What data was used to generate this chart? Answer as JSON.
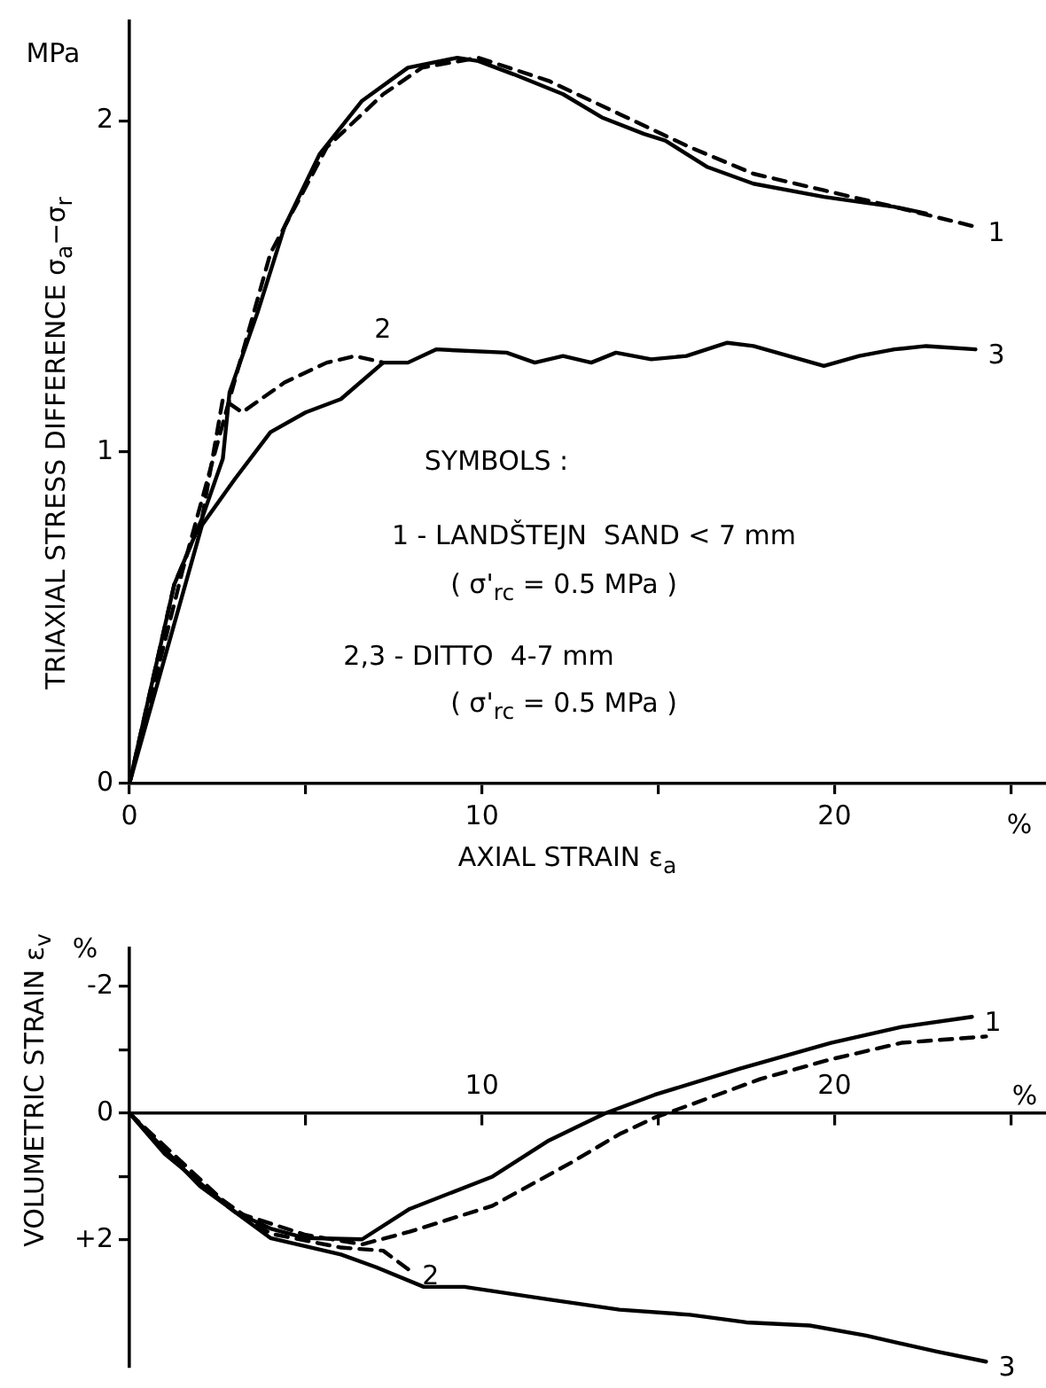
{
  "chart_data": [
    {
      "type": "line",
      "ylabel": "TRIAXIAL STRESS DIFFERENCE σ$_{a}$−σ$_{r}$",
      "xlabel": "AXIAL STRAIN ε$_{a}$",
      "annotations": [
        "MPa",
        "%",
        "SYMBOLS :",
        "1 - LANDŠTEJN  SAND < 7 mm",
        "( σ'$_{rc}$ = 0.5 MPa )",
        "2,3 - DITTO  4-7 mm",
        "( σ'$_{rc}$ = 0.5 MPa )"
      ],
      "xlim": [
        0,
        26
      ],
      "xticks": [
        0,
        {
          "value": 5,
          "label": null
        },
        10,
        {
          "value": 15,
          "label": null
        },
        20,
        {
          "value": 25,
          "label": null
        }
      ],
      "ylim": [
        0,
        2.3
      ],
      "yticks": [
        0,
        1,
        2
      ],
      "grid": false,
      "legend": false,
      "marker": "none",
      "series": [
        {
          "color": "#000000",
          "line_style": "solid",
          "x": [
            0,
            1.27,
            2.06,
            2.65,
            2.84,
            3.63,
            4.4,
            5.4,
            6.6,
            7.9,
            9.3,
            9.9,
            10.9,
            12.3,
            13.4,
            14.6,
            15.2,
            16.4,
            17.7,
            19.7,
            21.7,
            22.6
          ],
          "values": [
            0,
            0.6,
            0.8,
            0.98,
            1.18,
            1.42,
            1.68,
            1.9,
            2.06,
            2.16,
            2.19,
            2.18,
            2.14,
            2.08,
            2.01,
            1.96,
            1.94,
            1.86,
            1.81,
            1.77,
            1.74,
            1.72
          ]
        },
        {
          "name": "1",
          "color": "#000000",
          "line_style": "dashed",
          "x": [
            0,
            1.5,
            2.84,
            4.0,
            5.6,
            7.2,
            8.3,
            9.9,
            11.9,
            13.9,
            15.9,
            17.7,
            19.7,
            21.7,
            24.0
          ],
          "values": [
            0,
            0.64,
            1.16,
            1.6,
            1.92,
            2.08,
            2.16,
            2.19,
            2.12,
            2.02,
            1.92,
            1.84,
            1.79,
            1.74,
            1.68
          ]
        },
        {
          "name": "2",
          "color": "#000000",
          "line_style": "dashed",
          "x": [
            0,
            1.27,
            2.06,
            2.65,
            3.2,
            4.4,
            5.6,
            6.4,
            7.2
          ],
          "values": [
            0,
            0.6,
            0.8,
            1.16,
            1.12,
            1.21,
            1.27,
            1.29,
            1.27
          ]
        },
        {
          "name": "3",
          "color": "#000000",
          "line_style": "solid",
          "x": [
            0,
            2.06,
            3.0,
            4.0,
            5.0,
            6.0,
            7.2,
            7.9,
            8.7,
            10.7,
            11.5,
            12.3,
            13.1,
            13.8,
            14.8,
            15.8,
            16.96,
            17.7,
            18.7,
            19.7,
            20.7,
            21.7,
            22.6,
            24.0
          ],
          "values": [
            0,
            0.78,
            0.92,
            1.06,
            1.12,
            1.16,
            1.27,
            1.27,
            1.31,
            1.3,
            1.27,
            1.29,
            1.27,
            1.3,
            1.28,
            1.29,
            1.33,
            1.32,
            1.29,
            1.26,
            1.29,
            1.31,
            1.32,
            1.31
          ]
        }
      ]
    },
    {
      "type": "line",
      "ylabel": "VOLUMETRIC STRAIN ε$_{v}$",
      "annotations": [
        "%",
        "%"
      ],
      "xlim": [
        0,
        26
      ],
      "xticks": [
        {
          "value": 5,
          "label": null
        },
        10,
        {
          "value": 15,
          "label": null
        },
        20,
        {
          "value": 25,
          "label": null
        }
      ],
      "ylim": [
        4,
        -2.6
      ],
      "yticks": [
        {
          "value": -2,
          "label": "-2"
        },
        {
          "value": -1,
          "label": null
        },
        0,
        {
          "value": 1,
          "label": null
        },
        {
          "value": 2,
          "label": "+2"
        }
      ],
      "grid": false,
      "legend": false,
      "marker": "none",
      "series": [
        {
          "name": "1",
          "color": "#000000",
          "line_style": "solid",
          "x": [
            0,
            1.0,
            2.0,
            3.0,
            4.0,
            5.0,
            6.6,
            7.95,
            10.3,
            11.9,
            13.5,
            14.9,
            17.3,
            19.9,
            21.9,
            23.9
          ],
          "values": [
            0,
            0.64,
            1.1,
            1.56,
            1.82,
            1.97,
            1.99,
            1.51,
            1.0,
            0.43,
            0,
            -0.29,
            -0.7,
            -1.11,
            -1.36,
            -1.52
          ]
        },
        {
          "color": "#000000",
          "line_style": "dashed",
          "x": [
            0,
            3.0,
            5.0,
            6.6,
            7.95,
            10.3,
            12.5,
            13.9,
            14.9,
            15.9,
            17.9,
            19.9,
            21.9,
            24.3
          ],
          "values": [
            0,
            1.56,
            1.92,
            2.07,
            1.87,
            1.46,
            0.79,
            0.33,
            0.07,
            -0.13,
            -0.54,
            -0.85,
            -1.11,
            -1.21
          ]
        },
        {
          "name": "2",
          "color": "#000000",
          "line_style": "dashed",
          "x": [
            0,
            2.0,
            4.0,
            6.0,
            7.2,
            7.95
          ],
          "values": [
            0,
            1.12,
            1.9,
            2.12,
            2.17,
            2.48
          ]
        },
        {
          "name": "3",
          "color": "#000000",
          "line_style": "solid",
          "x": [
            0,
            2.0,
            4.0,
            6.0,
            7.0,
            8.35,
            9.5,
            11.9,
            13.9,
            15.9,
            17.5,
            19.3,
            20.9,
            22.9,
            24.3
          ],
          "values": [
            0,
            1.15,
            1.97,
            2.23,
            2.43,
            2.74,
            2.74,
            2.94,
            3.1,
            3.18,
            3.3,
            3.35,
            3.51,
            3.76,
            3.92
          ]
        }
      ]
    }
  ]
}
